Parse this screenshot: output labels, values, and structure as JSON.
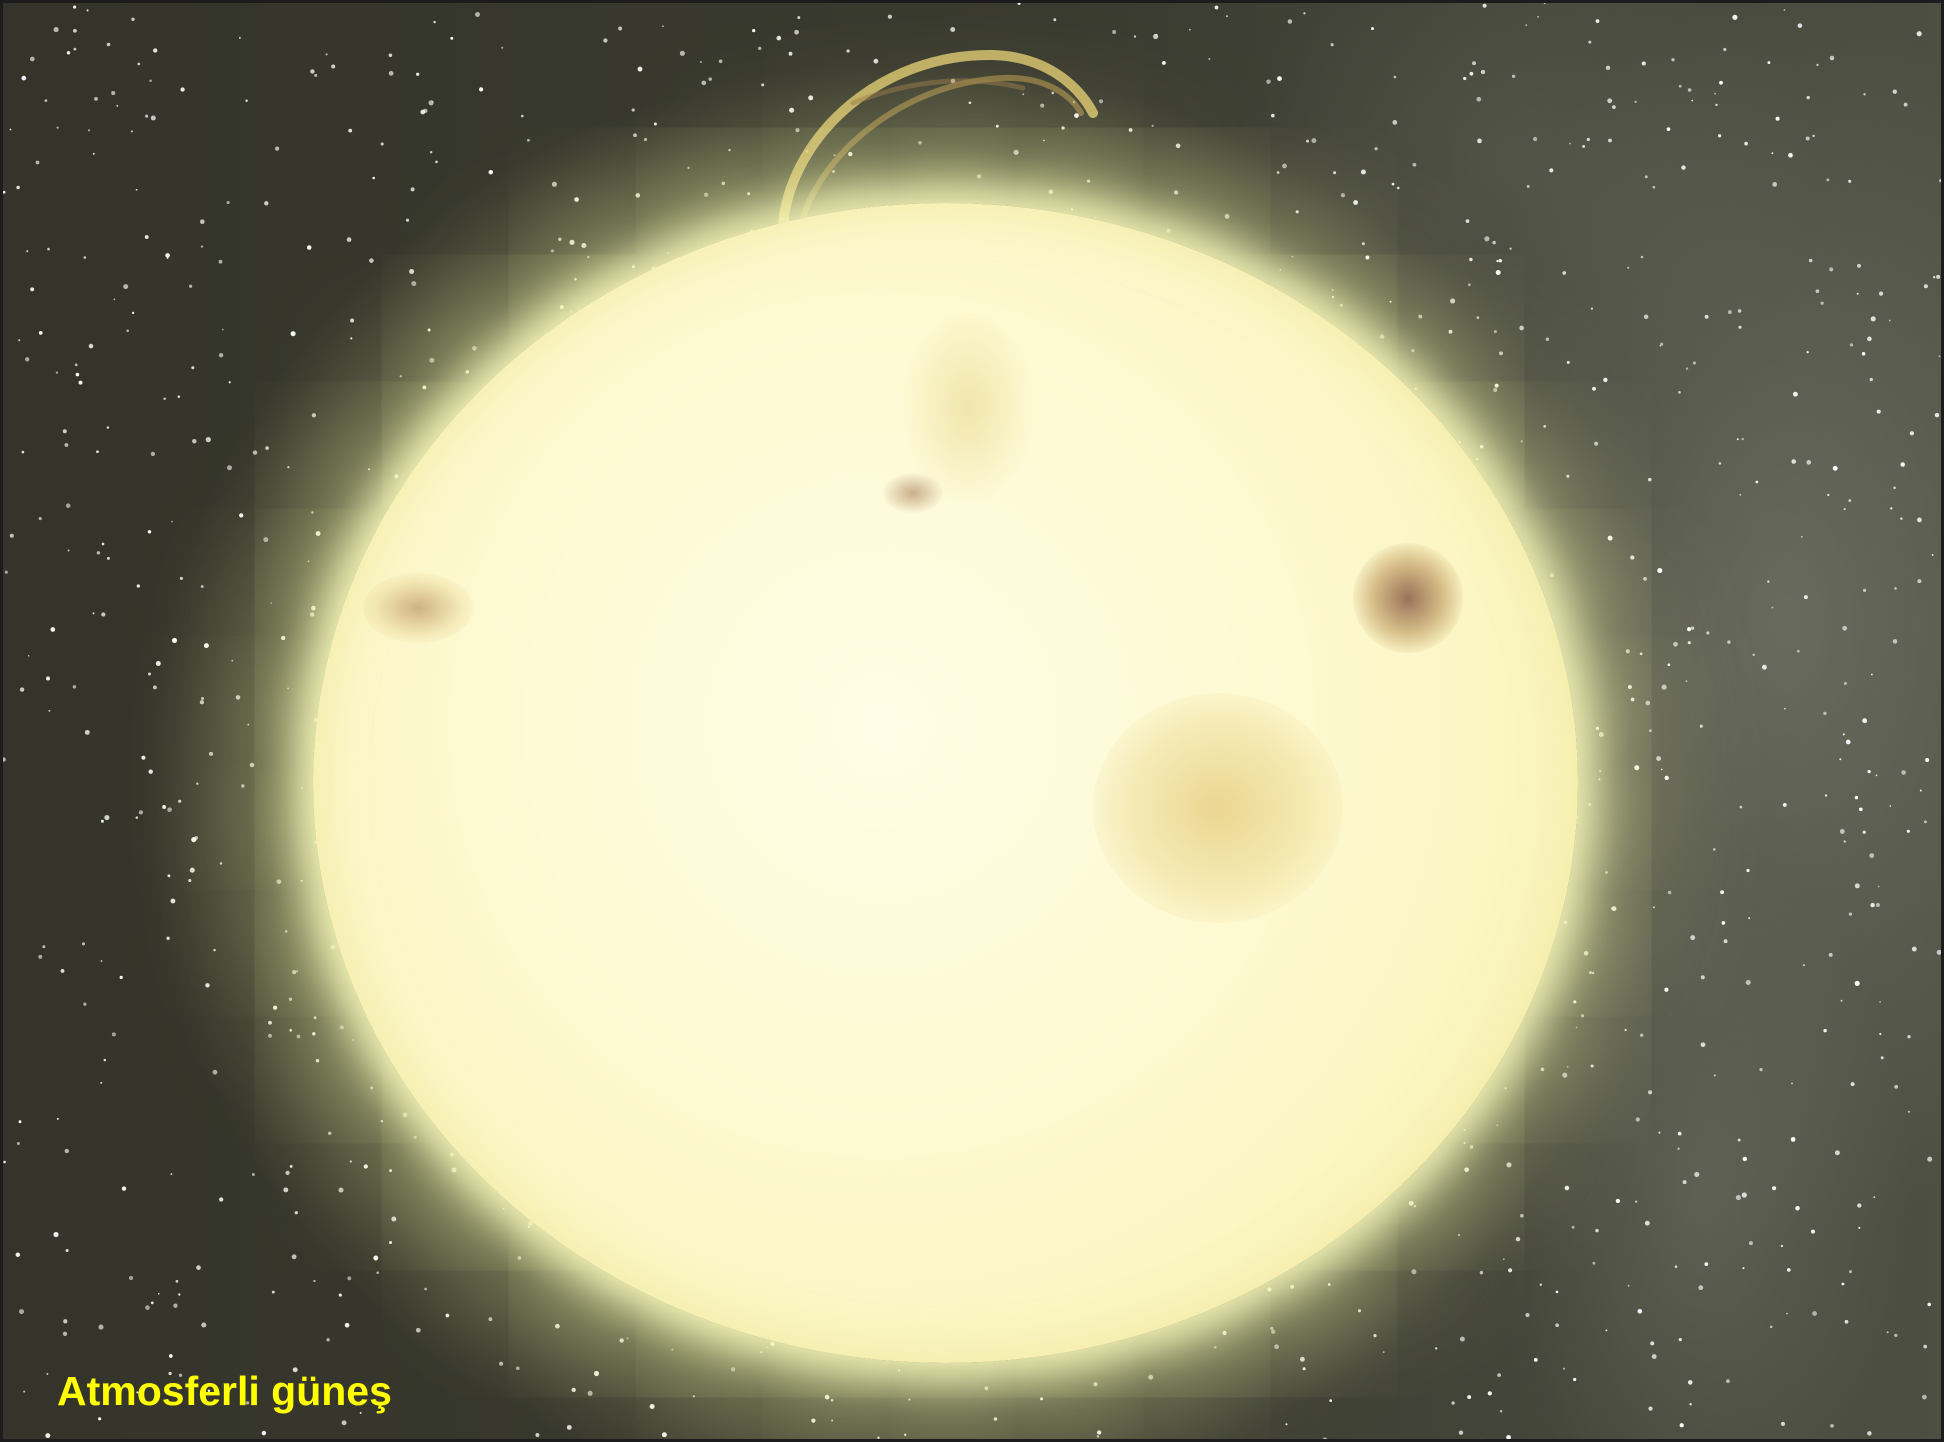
{
  "caption": {
    "text": "Atmosferli güneş",
    "color": "#ffff00"
  },
  "colors": {
    "space_background": "#3a3b30",
    "sun_surface": "#fdf9d0",
    "sun_glow": "#f9f3b8"
  }
}
